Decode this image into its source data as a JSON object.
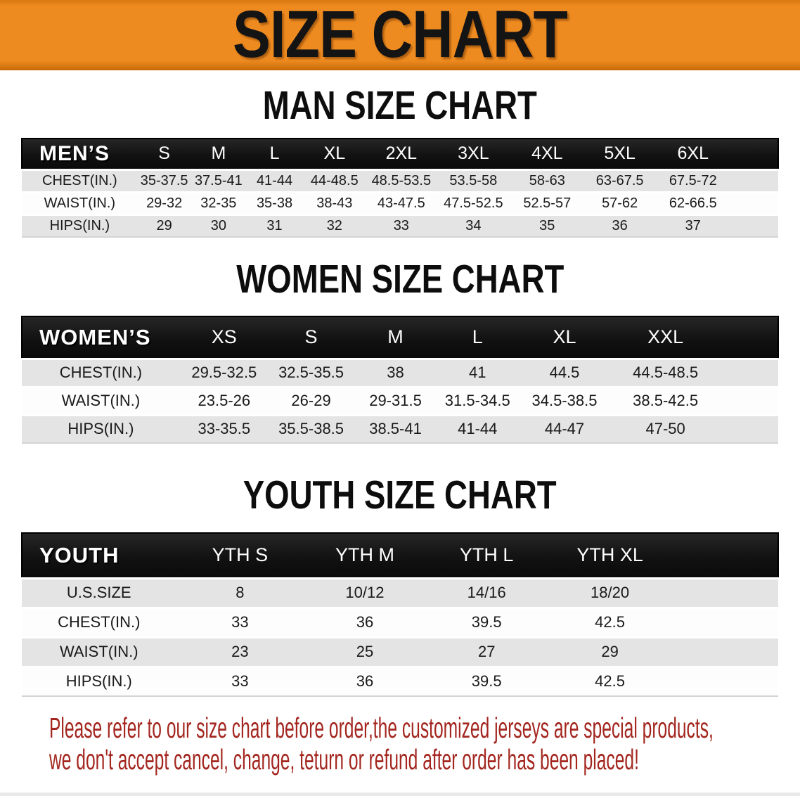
{
  "banner": {
    "title": "SIZE CHART"
  },
  "colors": {
    "banner-orange": "#ee8b20",
    "band-black": "#121212",
    "row-gray": "#e4e4e4",
    "disclaimer-red": "#a3261f"
  },
  "tables": {
    "men": {
      "heading": "MAN SIZE CHART",
      "header_label": "MEN’S",
      "columns": [
        "S",
        "M",
        "L",
        "XL",
        "2XL",
        "3XL",
        "4XL",
        "5XL",
        "6XL"
      ],
      "rows": [
        {
          "label": "CHEST(IN.)",
          "values": [
            "35-37.5",
            "37.5-41",
            "41-44",
            "44-48.5",
            "48.5-53.5",
            "53.5-58",
            "58-63",
            "63-67.5",
            "67.5-72"
          ]
        },
        {
          "label": "WAIST(IN.)",
          "values": [
            "29-32",
            "32-35",
            "35-38",
            "38-43",
            "43-47.5",
            "47.5-52.5",
            "52.5-57",
            "57-62",
            "62-66.5"
          ]
        },
        {
          "label": "HIPS(IN.)",
          "values": [
            "29",
            "30",
            "31",
            "32",
            "33",
            "34",
            "35",
            "36",
            "37"
          ]
        }
      ]
    },
    "women": {
      "heading": "WOMEN SIZE CHART",
      "header_label": "WOMEN’S",
      "columns": [
        "XS",
        "S",
        "M",
        "L",
        "XL",
        "XXL"
      ],
      "rows": [
        {
          "label": "CHEST(IN.)",
          "values": [
            "29.5-32.5",
            "32.5-35.5",
            "38",
            "41",
            "44.5",
            "44.5-48.5"
          ]
        },
        {
          "label": "WAIST(IN.)",
          "values": [
            "23.5-26",
            "26-29",
            "29-31.5",
            "31.5-34.5",
            "34.5-38.5",
            "38.5-42.5"
          ]
        },
        {
          "label": "HIPS(IN.)",
          "values": [
            "33-35.5",
            "35.5-38.5",
            "38.5-41",
            "41-44",
            "44-47",
            "47-50"
          ]
        }
      ]
    },
    "youth": {
      "heading": "YOUTH SIZE CHART",
      "header_label": "YOUTH",
      "columns": [
        "YTH S",
        "YTH M",
        "YTH L",
        "YTH XL"
      ],
      "rows": [
        {
          "label": "U.S.SIZE",
          "values": [
            "8",
            "10/12",
            "14/16",
            "18/20"
          ]
        },
        {
          "label": "CHEST(IN.)",
          "values": [
            "33",
            "36",
            "39.5",
            "42.5"
          ]
        },
        {
          "label": "WAIST(IN.)",
          "values": [
            "23",
            "25",
            "27",
            "29"
          ]
        },
        {
          "label": "HIPS(IN.)",
          "values": [
            "33",
            "36",
            "39.5",
            "42.5"
          ]
        }
      ]
    }
  },
  "disclaimer": {
    "lines": [
      "Please refer to our size chart before order,the customized jerseys are special products,",
      "we don't accept cancel, change, teturn or refund after order has been placed!"
    ]
  }
}
